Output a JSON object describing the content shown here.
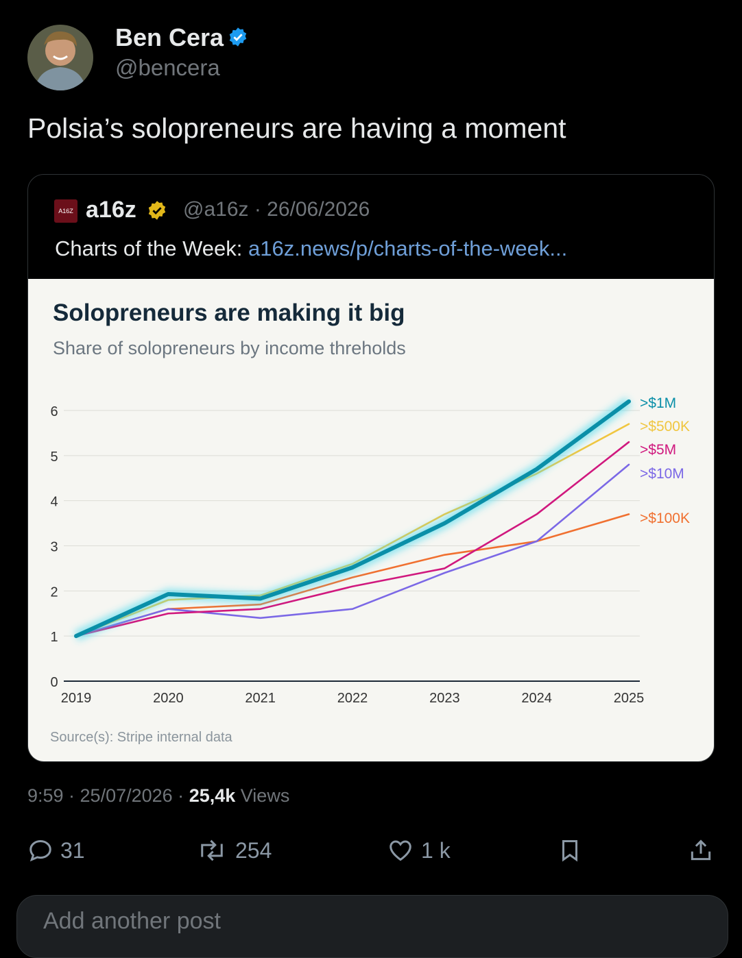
{
  "post": {
    "author_name": "Ben Cera",
    "author_handle": "@bencera",
    "text": "Polsia’s solopreneurs are having a moment",
    "timestamp": "9:59 · 25/07/2026 ·",
    "views_count": "25,4k",
    "views_label": "Views"
  },
  "quote": {
    "logo_text": "A16Z",
    "name": "a16z",
    "meta": "@a16z · 26/06/2026",
    "text_prefix": "Charts of the Week:",
    "link_text": "a16z.news/p/charts-of-the-week..."
  },
  "actions": {
    "replies": "31",
    "reposts": "254",
    "likes": "1 k"
  },
  "composer": {
    "placeholder": "Add another post"
  },
  "colors": {
    "verified": "#1d9bf0",
    "gold_badge": "#e2b719",
    "link": "#6f9fd8"
  },
  "chart_data": {
    "type": "line",
    "title": "Solopreneurs are making it big",
    "subtitle": "Share of solopreneurs by income threholds",
    "source": "Source(s): Stripe internal data",
    "x": [
      "2019",
      "2020",
      "2021",
      "2022",
      "2023",
      "2024",
      "2025"
    ],
    "ylim": [
      0,
      6
    ],
    "yticks": [
      "0",
      "1",
      "2",
      "3",
      "4",
      "5",
      "6"
    ],
    "grid": true,
    "series": [
      {
        "name": ">$100K",
        "color": "#f07030",
        "values": [
          1,
          1.6,
          1.7,
          2.3,
          2.8,
          3.1,
          3.7
        ]
      },
      {
        "name": ">$10M",
        "color": "#7b68e6",
        "values": [
          1,
          1.6,
          1.4,
          1.6,
          2.4,
          3.1,
          4.8
        ]
      },
      {
        "name": ">$5M",
        "color": "#d0187e",
        "values": [
          1,
          1.5,
          1.6,
          2.1,
          2.5,
          3.7,
          5.3
        ]
      },
      {
        "name": ">$500K",
        "color": "#f0c640",
        "values": [
          1,
          1.8,
          1.9,
          2.6,
          3.7,
          4.6,
          5.7
        ]
      },
      {
        "name": ">$1M",
        "color": "#0a8fa8",
        "values": [
          1,
          1.93,
          1.83,
          2.52,
          3.5,
          4.7,
          6.2
        ]
      }
    ]
  }
}
